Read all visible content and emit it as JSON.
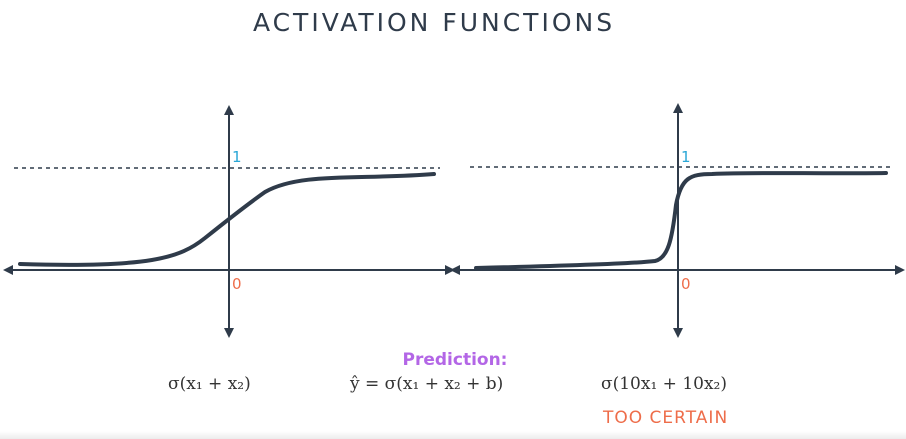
{
  "title": "ACTIVATION FUNCTIONS",
  "left_plot": {
    "y_tick_top": "1",
    "origin_label": "0"
  },
  "right_plot": {
    "y_tick_top": "1",
    "origin_label": "0"
  },
  "formulas": {
    "left": "σ(x₁ + x₂)",
    "middle_label": "Prediction:",
    "middle": "ŷ = σ(x₁ + x₂ + b)",
    "right": "σ(10x₁ + 10x₂)",
    "right_note": "TOO CERTAIN"
  },
  "colors": {
    "curve": "#2f3b4a",
    "axis": "#2f3b4a",
    "one_label": "#2aa7d6",
    "zero_label": "#ee6d4a",
    "prediction": "#b366e6",
    "warning": "#ee6d4a"
  }
}
